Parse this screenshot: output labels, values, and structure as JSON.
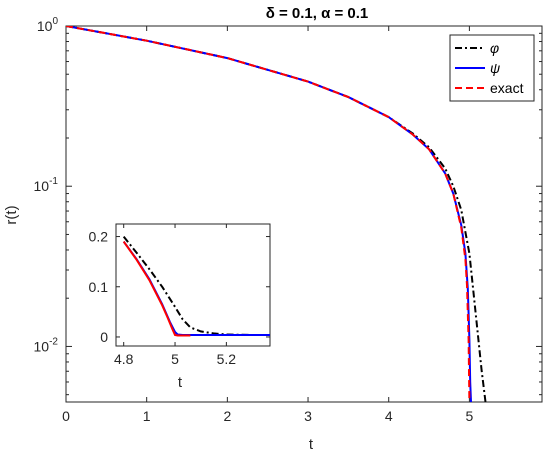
{
  "chart_data": [
    {
      "id": "main",
      "type": "line",
      "title": "δ  =  0.1,  α  =  0.1",
      "xlabel": "t",
      "ylabel": "r(t)",
      "xlim": [
        0,
        5.9
      ],
      "ylim": [
        0.0045,
        1.0
      ],
      "yscale": "log",
      "grid": false,
      "legend_position": "top-right",
      "x_ticks": [
        {
          "value": 0,
          "label": "0"
        },
        {
          "value": 1,
          "label": "1"
        },
        {
          "value": 2,
          "label": "2"
        },
        {
          "value": 3,
          "label": "3"
        },
        {
          "value": 4,
          "label": "4"
        },
        {
          "value": 5,
          "label": "5"
        }
      ],
      "y_ticks": [
        {
          "value": 1,
          "base": "10",
          "exp": "0"
        },
        {
          "value": 0.1,
          "base": "10",
          "exp": "-1"
        },
        {
          "value": 0.01,
          "base": "10",
          "exp": "-2"
        }
      ],
      "series": [
        {
          "name": "φ",
          "color": "#000000",
          "style": "dashdot",
          "x": [
            0,
            1,
            2,
            3,
            3.5,
            4,
            4.3,
            4.5,
            4.7,
            4.8,
            4.9,
            5.0,
            5.05,
            5.1,
            5.15,
            5.2
          ],
          "y": [
            1,
            0.81,
            0.63,
            0.45,
            0.36,
            0.27,
            0.213,
            0.175,
            0.129,
            0.1,
            0.071,
            0.038,
            0.022,
            0.0125,
            0.0072,
            0.0045
          ]
        },
        {
          "name": "ψ",
          "color": "#0000ff",
          "style": "solid",
          "x": [
            0,
            1,
            2,
            3,
            3.5,
            4,
            4.3,
            4.5,
            4.7,
            4.8,
            4.9,
            4.95,
            4.98,
            5.0,
            5.01,
            5.02
          ],
          "y": [
            1,
            0.81,
            0.63,
            0.45,
            0.36,
            0.27,
            0.21,
            0.17,
            0.12,
            0.09,
            0.057,
            0.038,
            0.023,
            0.011,
            0.006,
            0.0045
          ]
        },
        {
          "name": "exact",
          "color": "#ff0000",
          "style": "dashed",
          "x": [
            0,
            1,
            2,
            3,
            3.5,
            4,
            4.3,
            4.5,
            4.7,
            4.8,
            4.9,
            4.95,
            4.97,
            4.99,
            5.0
          ],
          "y": [
            1,
            0.81,
            0.63,
            0.45,
            0.36,
            0.27,
            0.21,
            0.17,
            0.12,
            0.09,
            0.055,
            0.035,
            0.024,
            0.011,
            0.0045
          ]
        }
      ]
    },
    {
      "id": "inset",
      "type": "line",
      "xlabel": "t",
      "xlim": [
        4.77,
        5.37
      ],
      "ylim": [
        -0.018,
        0.225
      ],
      "yscale": "linear",
      "x_ticks": [
        {
          "value": 4.8,
          "label": "4.8"
        },
        {
          "value": 5.0,
          "label": "5"
        },
        {
          "value": 5.2,
          "label": "5.2"
        }
      ],
      "y_ticks": [
        {
          "value": 0,
          "label": "0"
        },
        {
          "value": 0.1,
          "label": "0.1"
        },
        {
          "value": 0.2,
          "label": "0.2"
        }
      ],
      "series": [
        {
          "name": "φ",
          "color": "#000000",
          "style": "dashdot",
          "x": [
            4.8,
            4.85,
            4.9,
            4.95,
            5.0,
            5.03,
            5.06,
            5.1,
            5.15,
            5.2,
            5.3,
            5.37
          ],
          "y": [
            0.2,
            0.168,
            0.135,
            0.1,
            0.06,
            0.035,
            0.019,
            0.011,
            0.007,
            0.005,
            0.004,
            0.004
          ]
        },
        {
          "name": "ψ",
          "color": "#0000ff",
          "style": "solid",
          "x": [
            4.8,
            4.85,
            4.9,
            4.95,
            4.98,
            5.0,
            5.01,
            5.03,
            5.06,
            5.1,
            5.2,
            5.37
          ],
          "y": [
            0.19,
            0.155,
            0.115,
            0.065,
            0.03,
            0.01,
            0.005,
            0.004,
            0.004,
            0.004,
            0.004,
            0.004
          ]
        },
        {
          "name": "exact",
          "color": "#ff0000",
          "style": "solid",
          "x": [
            4.8,
            4.85,
            4.9,
            4.95,
            4.97,
            4.99,
            5.0,
            5.01,
            5.03,
            5.06
          ],
          "y": [
            0.19,
            0.154,
            0.113,
            0.063,
            0.04,
            0.015,
            0.004,
            0.003,
            0.003,
            0.003
          ]
        }
      ]
    }
  ]
}
